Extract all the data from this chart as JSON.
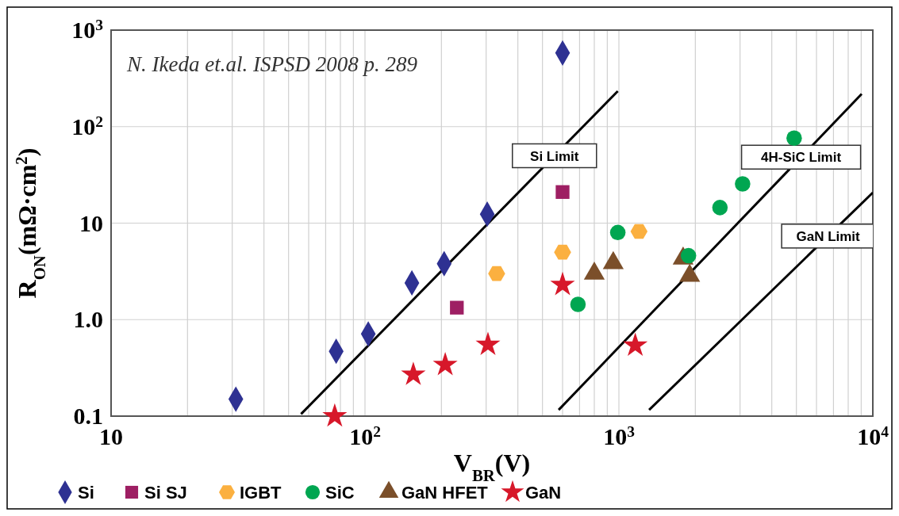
{
  "chart_data": {
    "type": "scatter",
    "xlabel": "V$_{BR}$(V)",
    "ylabel": "R$_{ON}$(mΩ·cm$^{2}$)",
    "log": "xy",
    "grid": true,
    "legend": "bottom",
    "xlim": [
      10,
      10000
    ],
    "ylim": [
      0.1,
      1000
    ],
    "xticks": [
      10,
      {
        "value": 100,
        "label": "10$^{2}$"
      },
      {
        "value": 1000,
        "label": "10$^{3}$"
      },
      {
        "value": 10000,
        "label": "10$^{4}$"
      }
    ],
    "yticks": [
      0.1,
      {
        "value": 1,
        "label": "1.0"
      },
      10,
      {
        "value": 100,
        "label": "10$^{2}$"
      },
      {
        "value": 1000,
        "label": "10$^{3}$"
      }
    ],
    "annotations": [
      "N. Ikeda et.al. ISPSD 2008 p. 289"
    ],
    "series": [
      {
        "name": "Si",
        "color": "#2e3192",
        "marker": "diamond",
        "x": [
          31,
          77,
          103,
          153,
          205,
          303,
          600
        ],
        "values": [
          0.15,
          0.47,
          0.71,
          2.4,
          3.8,
          12.4,
          580
        ]
      },
      {
        "name": "Si SJ",
        "color": "#9e1f63",
        "marker": "square",
        "x": [
          230,
          600
        ],
        "values": [
          1.33,
          21
        ]
      },
      {
        "name": "IGBT",
        "color": "#fbb040",
        "x": [
          330,
          600,
          1200
        ],
        "values": [
          3.0,
          5.0,
          8.2
        ]
      },
      {
        "name": "SiC",
        "color": "#00a651",
        "marker": "circle",
        "x": [
          690,
          990,
          1880,
          2500,
          3070,
          4900
        ],
        "values": [
          1.44,
          8.0,
          4.6,
          14.5,
          25.5,
          76
        ]
      },
      {
        "name": "GaN HFET",
        "color": "#7b4f2a",
        "marker": "triangle",
        "x": [
          800,
          950,
          1790,
          1900
        ],
        "values": [
          3.0,
          3.85,
          4.3,
          2.85
        ]
      },
      {
        "name": "GaN",
        "color": "#d7182a",
        "marker": "star",
        "x": [
          76,
          155,
          207,
          305,
          600,
          1160
        ],
        "values": [
          0.1,
          0.27,
          0.34,
          0.55,
          2.3,
          0.54
        ]
      },
      {
        "name": "Si Limit",
        "type": "line",
        "color": "#000000",
        "line_style": "solid",
        "x": [
          56,
          990
        ],
        "values": [
          0.105,
          233
        ]
      },
      {
        "name": "4H-SiC Limit",
        "type": "line",
        "color": "#000000",
        "line_style": "solid",
        "x": [
          579,
          9040
        ],
        "values": [
          0.116,
          218
        ]
      },
      {
        "name": "GaN Limit",
        "type": "line",
        "color": "#000000",
        "line_style": "solid",
        "x": [
          1315,
          10000
        ],
        "values": [
          0.116,
          20.7
        ]
      }
    ]
  }
}
